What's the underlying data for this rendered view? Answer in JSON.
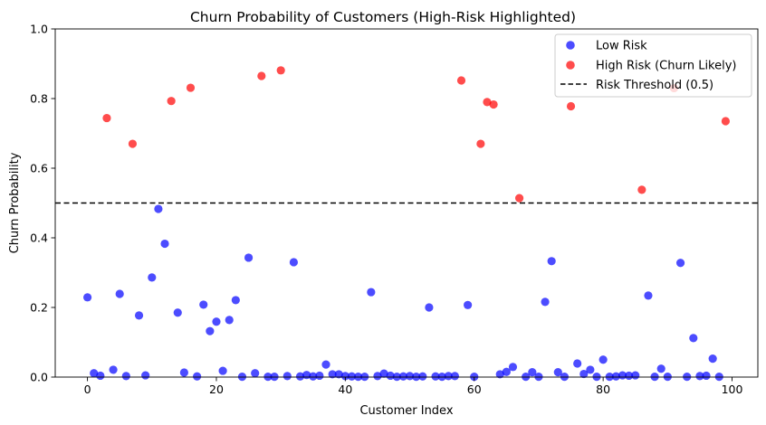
{
  "chart_data": {
    "type": "scatter",
    "title": "Churn Probability of Customers (High-Risk Highlighted)",
    "xlabel": "Customer Index",
    "ylabel": "Churn Probability",
    "xlim": [
      -5,
      104
    ],
    "ylim": [
      0,
      1
    ],
    "xticks": [
      0,
      20,
      40,
      60,
      80,
      100
    ],
    "yticks": [
      0.0,
      0.2,
      0.4,
      0.6,
      0.8,
      1.0
    ],
    "threshold": {
      "value": 0.5,
      "label": "Risk Threshold (0.5)",
      "color": "#000000",
      "style": "dashed"
    },
    "legend_position": "top-right",
    "series": [
      {
        "name": "Low Risk",
        "color": "#0000ff",
        "points": [
          [
            0,
            0.229
          ],
          [
            1,
            0.011
          ],
          [
            2,
            0.004
          ],
          [
            4,
            0.021
          ],
          [
            5,
            0.239
          ],
          [
            6,
            0.003
          ],
          [
            8,
            0.177
          ],
          [
            9,
            0.005
          ],
          [
            10,
            0.286
          ],
          [
            11,
            0.483
          ],
          [
            12,
            0.383
          ],
          [
            14,
            0.185
          ],
          [
            15,
            0.013
          ],
          [
            17,
            0.002
          ],
          [
            18,
            0.208
          ],
          [
            19,
            0.132
          ],
          [
            20,
            0.159
          ],
          [
            21,
            0.018
          ],
          [
            22,
            0.164
          ],
          [
            23,
            0.221
          ],
          [
            24,
            0.001
          ],
          [
            25,
            0.343
          ],
          [
            26,
            0.011
          ],
          [
            28,
            0.001
          ],
          [
            29,
            0.001
          ],
          [
            31,
            0.003
          ],
          [
            32,
            0.33
          ],
          [
            33,
            0.002
          ],
          [
            34,
            0.006
          ],
          [
            35,
            0.002
          ],
          [
            36,
            0.004
          ],
          [
            37,
            0.036
          ],
          [
            38,
            0.008
          ],
          [
            39,
            0.008
          ],
          [
            40,
            0.003
          ],
          [
            41,
            0.002
          ],
          [
            42,
            0.001
          ],
          [
            43,
            0.001
          ],
          [
            44,
            0.244
          ],
          [
            45,
            0.003
          ],
          [
            46,
            0.01
          ],
          [
            47,
            0.004
          ],
          [
            48,
            0.001
          ],
          [
            49,
            0.002
          ],
          [
            50,
            0.003
          ],
          [
            51,
            0.001
          ],
          [
            52,
            0.002
          ],
          [
            53,
            0.2
          ],
          [
            54,
            0.002
          ],
          [
            55,
            0.001
          ],
          [
            56,
            0.003
          ],
          [
            57,
            0.003
          ],
          [
            59,
            0.207
          ],
          [
            60,
            0.001
          ],
          [
            64,
            0.008
          ],
          [
            65,
            0.015
          ],
          [
            66,
            0.029
          ],
          [
            68,
            0.001
          ],
          [
            69,
            0.014
          ],
          [
            70,
            0.001
          ],
          [
            71,
            0.216
          ],
          [
            72,
            0.333
          ],
          [
            73,
            0.014
          ],
          [
            74,
            0.001
          ],
          [
            76,
            0.039
          ],
          [
            77,
            0.009
          ],
          [
            78,
            0.021
          ],
          [
            79,
            0.001
          ],
          [
            80,
            0.05
          ],
          [
            81,
            0.001
          ],
          [
            82,
            0.002
          ],
          [
            83,
            0.005
          ],
          [
            84,
            0.004
          ],
          [
            85,
            0.005
          ],
          [
            87,
            0.234
          ],
          [
            88,
            0.001
          ],
          [
            89,
            0.024
          ],
          [
            90,
            0.001
          ],
          [
            92,
            0.328
          ],
          [
            93,
            0.001
          ],
          [
            94,
            0.112
          ],
          [
            95,
            0.003
          ],
          [
            96,
            0.004
          ],
          [
            97,
            0.053
          ],
          [
            98,
            0.001
          ]
        ]
      },
      {
        "name": "High Risk (Churn Likely)",
        "color": "#ff0000",
        "points": [
          [
            3,
            0.744
          ],
          [
            7,
            0.67
          ],
          [
            13,
            0.793
          ],
          [
            16,
            0.831
          ],
          [
            27,
            0.865
          ],
          [
            30,
            0.881
          ],
          [
            58,
            0.852
          ],
          [
            61,
            0.67
          ],
          [
            62,
            0.79
          ],
          [
            63,
            0.783
          ],
          [
            67,
            0.514
          ],
          [
            75,
            0.778
          ],
          [
            86,
            0.538
          ],
          [
            91,
            0.83
          ],
          [
            99,
            0.735
          ]
        ]
      }
    ]
  }
}
